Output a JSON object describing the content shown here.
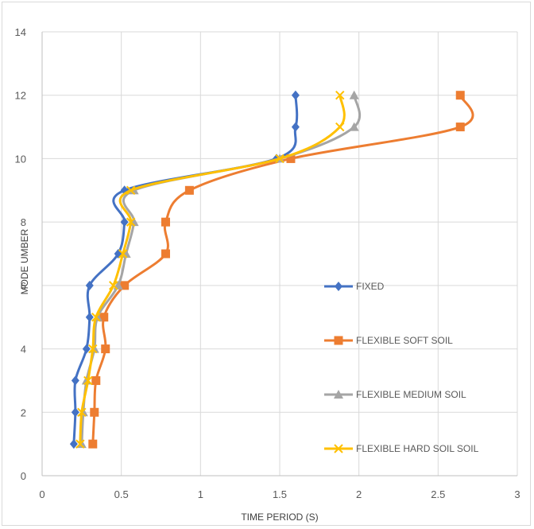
{
  "chart_data": {
    "type": "line",
    "title": "",
    "xlabel": "TIME PERIOD (S)",
    "ylabel": "MODE  UMBER",
    "xlim": [
      0,
      3
    ],
    "ylim": [
      0,
      14
    ],
    "x_ticks": [
      "0",
      "0.5",
      "1",
      "1.5",
      "2",
      "2.5",
      "3"
    ],
    "y_ticks": [
      "0",
      "2",
      "4",
      "6",
      "8",
      "10",
      "12",
      "14"
    ],
    "grid": "vertical-and-horizontal",
    "legend_position": "right",
    "series": [
      {
        "name": "FIXED",
        "color": "#4472c4",
        "marker": "diamond",
        "points": [
          [
            0.2,
            1
          ],
          [
            0.21,
            2
          ],
          [
            0.21,
            3
          ],
          [
            0.28,
            4
          ],
          [
            0.3,
            5
          ],
          [
            0.3,
            6
          ],
          [
            0.48,
            7
          ],
          [
            0.52,
            8
          ],
          [
            0.52,
            9
          ],
          [
            1.48,
            10
          ],
          [
            1.6,
            11
          ],
          [
            1.6,
            12
          ]
        ]
      },
      {
        "name": "FLEXIBLE SOFT SOIL",
        "color": "#ed7d31",
        "marker": "square",
        "points": [
          [
            0.32,
            1
          ],
          [
            0.33,
            2
          ],
          [
            0.34,
            3
          ],
          [
            0.4,
            4
          ],
          [
            0.39,
            5
          ],
          [
            0.52,
            6
          ],
          [
            0.78,
            7
          ],
          [
            0.78,
            8
          ],
          [
            0.93,
            9
          ],
          [
            1.57,
            10
          ],
          [
            2.64,
            11
          ],
          [
            2.64,
            12
          ]
        ]
      },
      {
        "name": "FLEXIBLE MEDIUM SOIL",
        "color": "#a5a5a5",
        "marker": "triangle",
        "points": [
          [
            0.25,
            1
          ],
          [
            0.26,
            2
          ],
          [
            0.28,
            3
          ],
          [
            0.33,
            4
          ],
          [
            0.35,
            5
          ],
          [
            0.48,
            6
          ],
          [
            0.53,
            7
          ],
          [
            0.58,
            8
          ],
          [
            0.58,
            9
          ],
          [
            1.5,
            10
          ],
          [
            1.97,
            11
          ],
          [
            1.97,
            12
          ]
        ]
      },
      {
        "name": "FLEXIBLE HARD SOIL SOIL",
        "color": "#ffc000",
        "marker": "x",
        "points": [
          [
            0.24,
            1
          ],
          [
            0.25,
            2
          ],
          [
            0.29,
            3
          ],
          [
            0.32,
            4
          ],
          [
            0.34,
            5
          ],
          [
            0.45,
            6
          ],
          [
            0.51,
            7
          ],
          [
            0.56,
            8
          ],
          [
            0.56,
            9
          ],
          [
            1.5,
            10
          ],
          [
            1.88,
            11
          ],
          [
            1.88,
            12
          ]
        ]
      }
    ]
  }
}
